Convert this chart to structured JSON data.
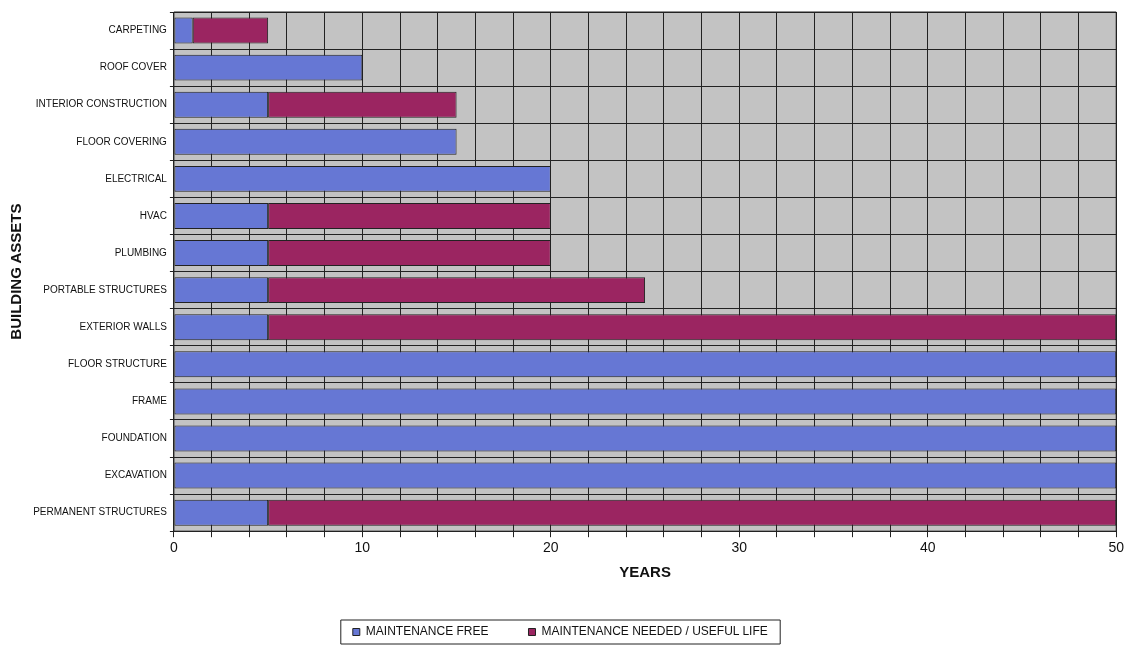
{
  "chart_data": {
    "type": "bar",
    "orientation": "horizontal",
    "stacked": true,
    "xlabel": "YEARS",
    "ylabel": "BUILDING ASSETS",
    "categories": [
      "CARPETING",
      "ROOF COVER",
      "INTERIOR CONSTRUCTION",
      "FLOOR COVERING",
      "ELECTRICAL",
      "HVAC",
      "PLUMBING",
      "PORTABLE STRUCTURES",
      "EXTERIOR WALLS",
      "FLOOR STRUCTURE",
      "FRAME",
      "FOUNDATION",
      "EXCAVATION",
      "PERMANENT STRUCTURES"
    ],
    "series": [
      {
        "name": "MAINTENANCE FREE",
        "color": "#6677d4",
        "values": [
          1,
          10,
          5,
          15,
          20,
          5,
          5,
          5,
          5,
          50,
          50,
          50,
          50,
          5
        ]
      },
      {
        "name": "MAINTENANCE NEEDED / USEFUL LIFE",
        "color": "#9b2561",
        "values": [
          4,
          0,
          10,
          0,
          0,
          15,
          15,
          20,
          45,
          0,
          0,
          0,
          0,
          45
        ]
      }
    ],
    "xlim": [
      0,
      50
    ],
    "xticks": [
      0,
      {
        "value": 2,
        "label": null
      },
      {
        "value": 4,
        "label": null
      },
      {
        "value": 6,
        "label": null
      },
      {
        "value": 8,
        "label": null
      },
      10,
      {
        "value": 12,
        "label": null
      },
      {
        "value": 14,
        "label": null
      },
      {
        "value": 16,
        "label": null
      },
      {
        "value": 18,
        "label": null
      },
      20,
      {
        "value": 22,
        "label": null
      },
      {
        "value": 24,
        "label": null
      },
      {
        "value": 26,
        "label": null
      },
      {
        "value": 28,
        "label": null
      },
      30,
      {
        "value": 32,
        "label": null
      },
      {
        "value": 34,
        "label": null
      },
      {
        "value": 36,
        "label": null
      },
      {
        "value": 38,
        "label": null
      },
      40,
      {
        "value": 42,
        "label": null
      },
      {
        "value": 44,
        "label": null
      },
      {
        "value": 46,
        "label": null
      },
      {
        "value": 48,
        "label": null
      },
      50
    ],
    "grid": true,
    "legend": "bottom"
  }
}
